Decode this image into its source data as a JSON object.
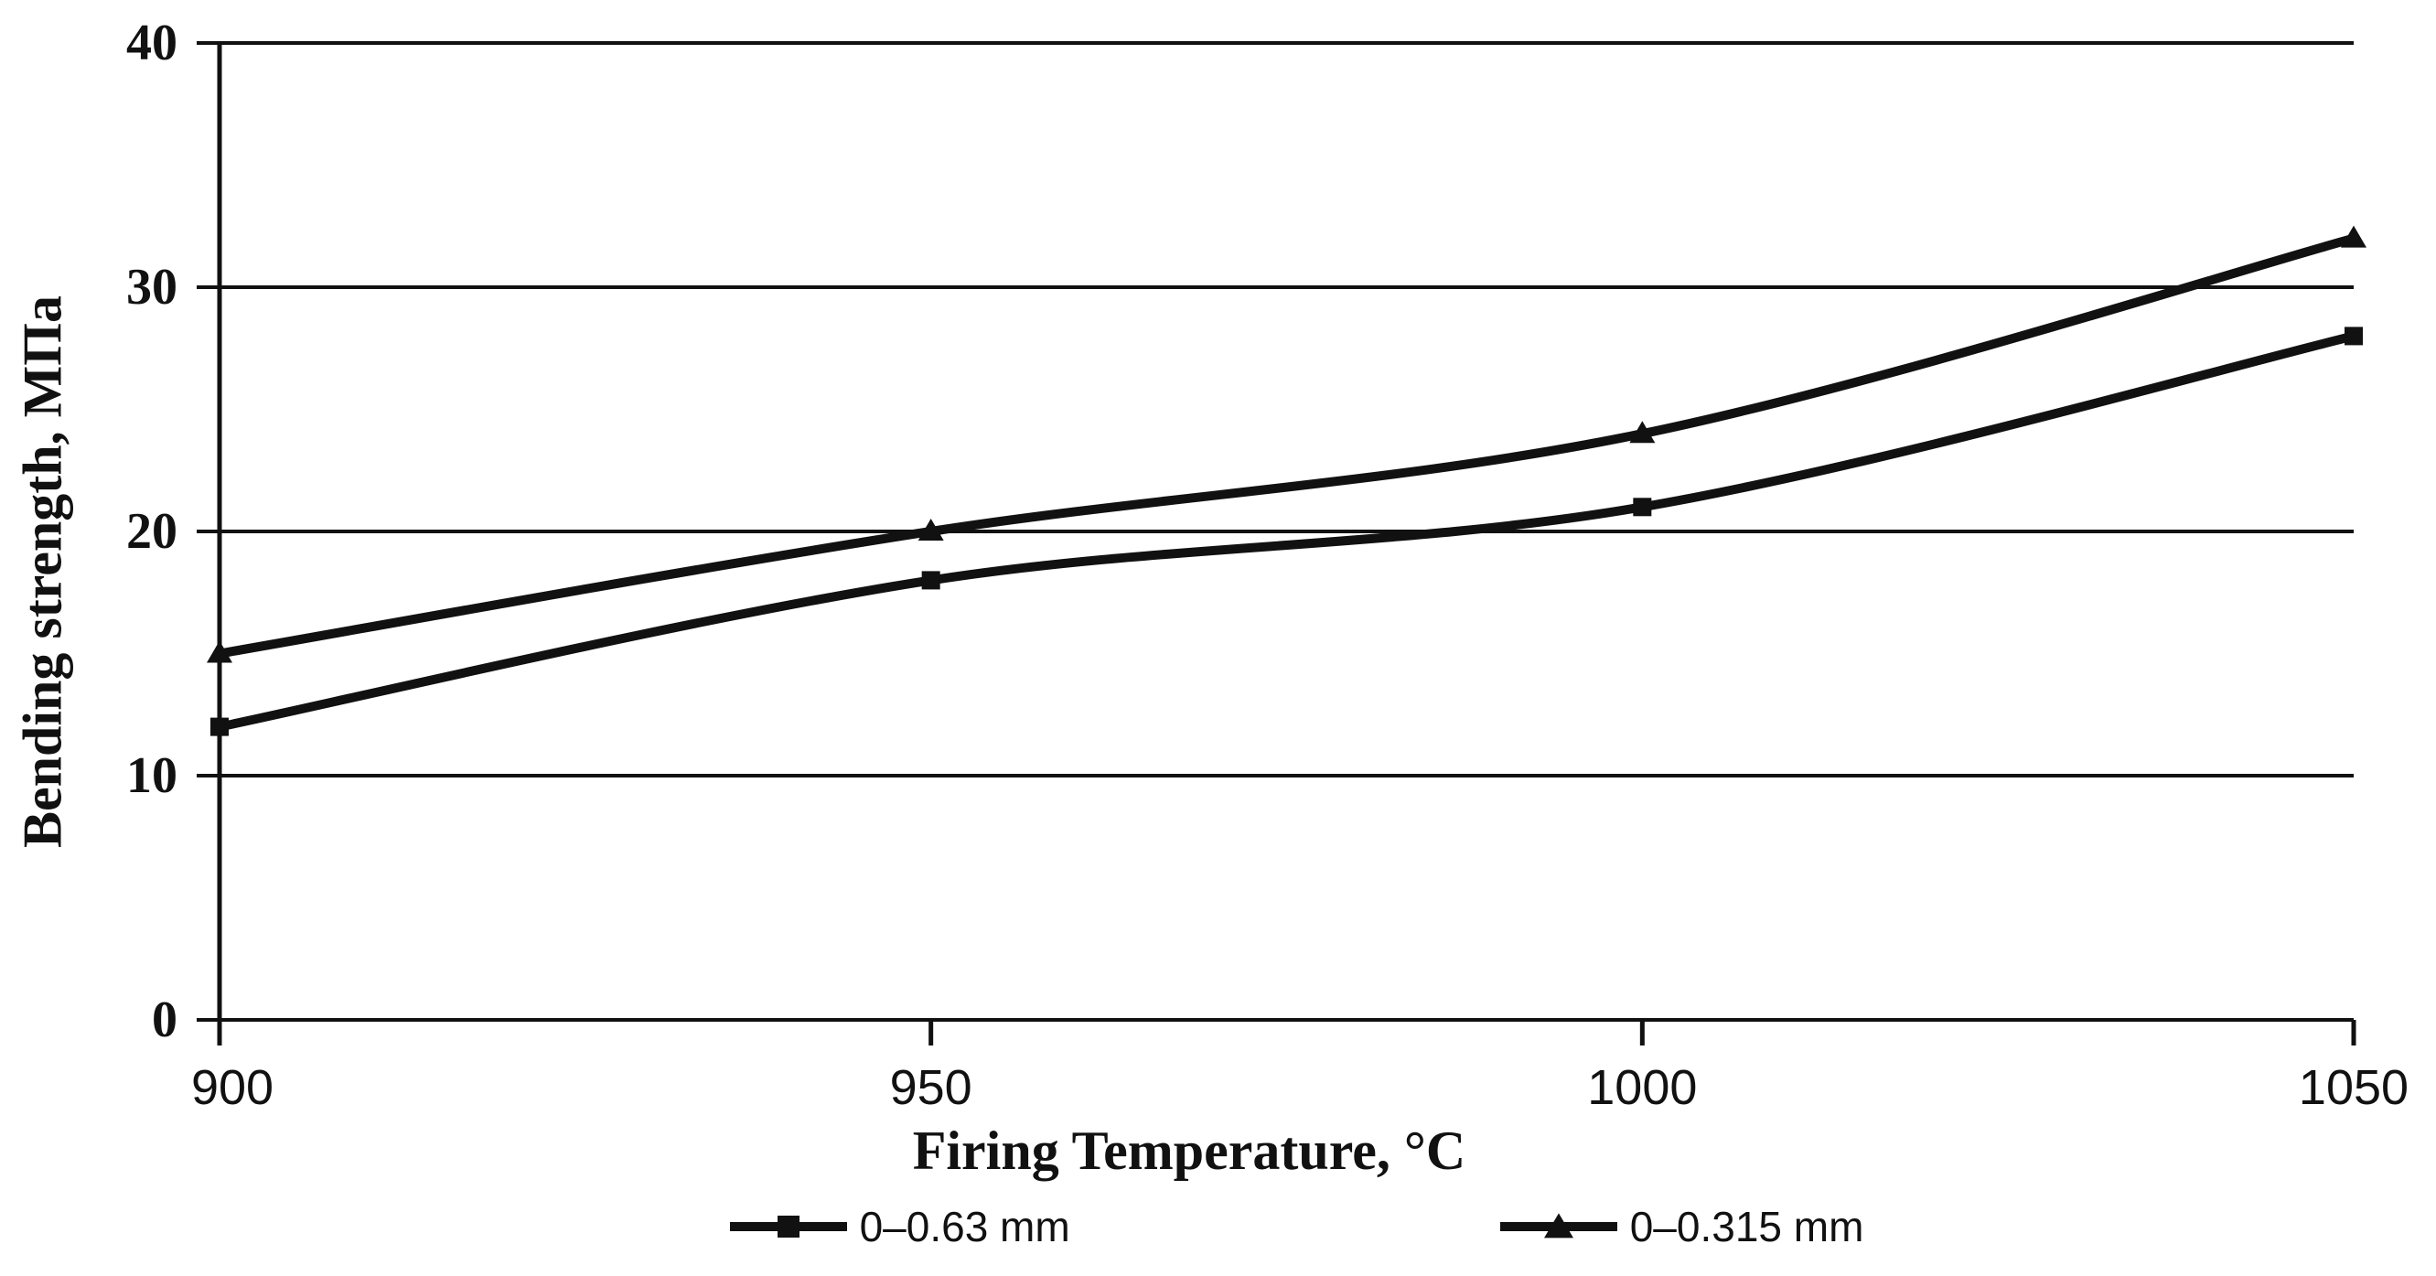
{
  "chart_data": {
    "type": "line",
    "title": "",
    "xlabel": "Firing Temperature, °C",
    "ylabel": "Bending strength, MПa",
    "x": [
      900,
      950,
      1000,
      1050
    ],
    "x_ticks": [
      "900",
      "950",
      "1000",
      "1050"
    ],
    "y_ticks": [
      0,
      10,
      20,
      30,
      40
    ],
    "xlim": [
      900,
      1050
    ],
    "ylim": [
      0,
      40
    ],
    "grid": "horizontal",
    "legend_position": "bottom",
    "background_color": "#ffffff",
    "line_color": "#111111",
    "line_style": "smooth",
    "series": [
      {
        "name": "0–0.63 mm",
        "marker": "square",
        "values": [
          12,
          18,
          21,
          28
        ]
      },
      {
        "name": "0–0.315 mm",
        "marker": "triangle",
        "values": [
          15,
          20,
          24,
          32
        ]
      }
    ]
  }
}
